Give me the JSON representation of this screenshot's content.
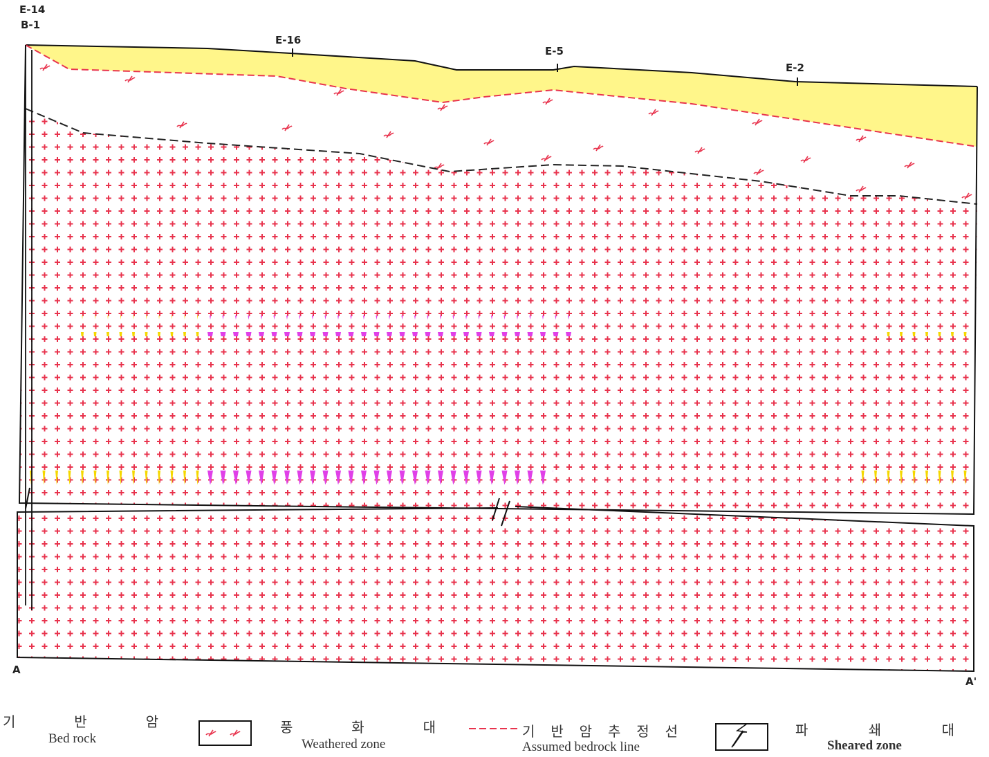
{
  "boreholes": [
    {
      "label": "E-14"
    },
    {
      "label": "B-1"
    },
    {
      "label": "E-16"
    },
    {
      "label": "E-5"
    },
    {
      "label": "E-2"
    }
  ],
  "section": {
    "start": "A",
    "end": "A'"
  },
  "legend": [
    {
      "korean": "기 반 암",
      "english": "Bed rock"
    },
    {
      "korean": "풍 화 대",
      "english": "Weathered zone"
    },
    {
      "korean": "기 반 암 추 정 선",
      "english": "Assumed bedrock line"
    },
    {
      "korean": "파 쇄 대",
      "english": "Sheared zone"
    }
  ]
}
